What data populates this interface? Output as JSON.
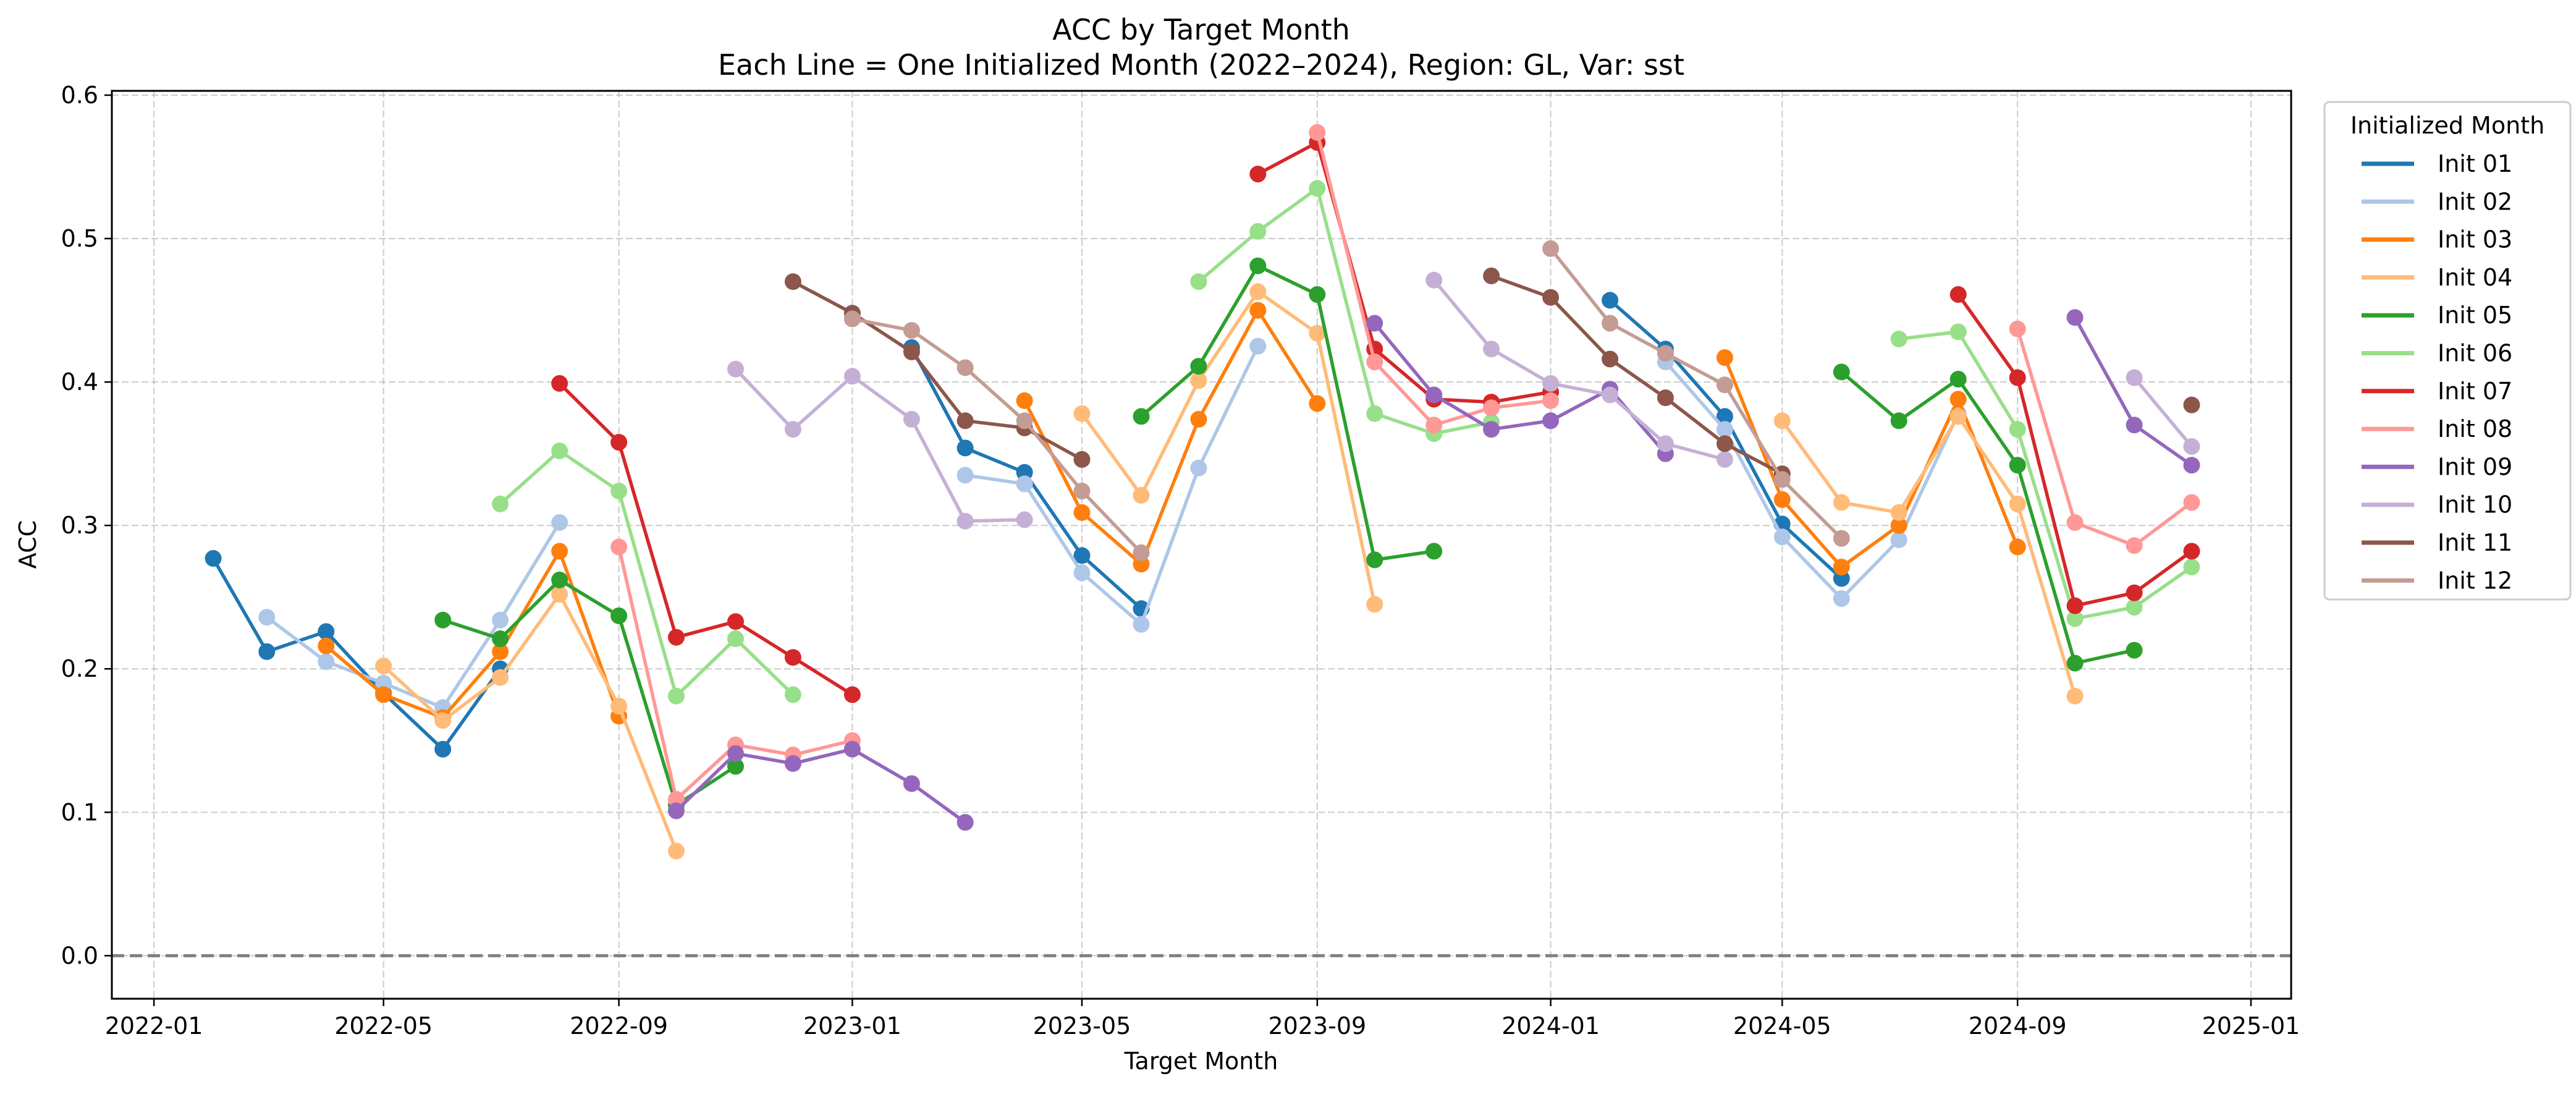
{
  "chart_data": {
    "type": "line",
    "title": "ACC by Target Month",
    "subtitle": "Each Line = One Initialized Month (2022–2024), Region: GL, Var: sst",
    "xlabel": "Target Month",
    "ylabel": "ACC",
    "xlim": [
      "2021-12-10",
      "2025-01-22"
    ],
    "ylim": [
      -0.03,
      0.603
    ],
    "grid": true,
    "zero_line": true,
    "legend_title": "Initialized Month",
    "legend_position": "outside-top-right",
    "x_ticks": [
      "2022-01",
      "2022-05",
      "2022-09",
      "2023-01",
      "2023-05",
      "2023-09",
      "2024-01",
      "2024-05",
      "2024-09",
      "2025-01"
    ],
    "y_ticks": [
      "0.0",
      "0.1",
      "0.2",
      "0.3",
      "0.4",
      "0.5",
      "0.6"
    ],
    "series": [
      {
        "name": "Init 01",
        "color": "#1f77b4",
        "segments": [
          [
            [
              "2022-02",
              0.277
            ],
            [
              "2022-03",
              0.212
            ],
            [
              "2022-04",
              0.226
            ],
            [
              "2022-05",
              0.183
            ],
            [
              "2022-06",
              0.144
            ],
            [
              "2022-07",
              0.2
            ]
          ],
          [
            [
              "2023-02",
              0.424
            ],
            [
              "2023-03",
              0.354
            ],
            [
              "2023-04",
              0.337
            ],
            [
              "2023-05",
              0.279
            ],
            [
              "2023-06",
              0.242
            ]
          ],
          [
            [
              "2024-02",
              0.457
            ],
            [
              "2024-03",
              0.423
            ],
            [
              "2024-04",
              0.376
            ],
            [
              "2024-05",
              0.301
            ],
            [
              "2024-06",
              0.263
            ]
          ]
        ]
      },
      {
        "name": "Init 02",
        "color": "#aec7e8",
        "segments": [
          [
            [
              "2022-03",
              0.236
            ],
            [
              "2022-04",
              0.205
            ],
            [
              "2022-05",
              0.19
            ],
            [
              "2022-06",
              0.173
            ],
            [
              "2022-07",
              0.234
            ],
            [
              "2022-08",
              0.302
            ]
          ],
          [
            [
              "2023-03",
              0.335
            ],
            [
              "2023-04",
              0.329
            ],
            [
              "2023-05",
              0.267
            ],
            [
              "2023-06",
              0.231
            ],
            [
              "2023-07",
              0.34
            ],
            [
              "2023-08",
              0.425
            ]
          ],
          [
            [
              "2024-03",
              0.414
            ],
            [
              "2024-04",
              0.367
            ],
            [
              "2024-05",
              0.292
            ],
            [
              "2024-06",
              0.249
            ],
            [
              "2024-07",
              0.29
            ],
            [
              "2024-08",
              0.378
            ]
          ]
        ]
      },
      {
        "name": "Init 03",
        "color": "#ff7f0e",
        "segments": [
          [
            [
              "2022-04",
              0.216
            ],
            [
              "2022-05",
              0.182
            ],
            [
              "2022-06",
              0.166
            ],
            [
              "2022-07",
              0.212
            ],
            [
              "2022-08",
              0.282
            ],
            [
              "2022-09",
              0.167
            ]
          ],
          [
            [
              "2023-04",
              0.387
            ],
            [
              "2023-05",
              0.309
            ],
            [
              "2023-06",
              0.273
            ],
            [
              "2023-07",
              0.374
            ],
            [
              "2023-08",
              0.45
            ],
            [
              "2023-09",
              0.385
            ]
          ],
          [
            [
              "2024-04",
              0.417
            ],
            [
              "2024-05",
              0.318
            ],
            [
              "2024-06",
              0.271
            ],
            [
              "2024-07",
              0.3
            ],
            [
              "2024-08",
              0.388
            ],
            [
              "2024-09",
              0.285
            ]
          ]
        ]
      },
      {
        "name": "Init 04",
        "color": "#ffbb78",
        "segments": [
          [
            [
              "2022-05",
              0.202
            ],
            [
              "2022-06",
              0.164
            ],
            [
              "2022-07",
              0.194
            ],
            [
              "2022-08",
              0.252
            ],
            [
              "2022-09",
              0.174
            ],
            [
              "2022-10",
              0.073
            ]
          ],
          [
            [
              "2023-05",
              0.378
            ],
            [
              "2023-06",
              0.321
            ],
            [
              "2023-07",
              0.401
            ],
            [
              "2023-08",
              0.463
            ],
            [
              "2023-09",
              0.434
            ],
            [
              "2023-10",
              0.245
            ]
          ],
          [
            [
              "2024-05",
              0.373
            ],
            [
              "2024-06",
              0.316
            ],
            [
              "2024-07",
              0.309
            ],
            [
              "2024-08",
              0.376
            ],
            [
              "2024-09",
              0.315
            ],
            [
              "2024-10",
              0.181
            ]
          ]
        ]
      },
      {
        "name": "Init 05",
        "color": "#2ca02c",
        "segments": [
          [
            [
              "2022-06",
              0.234
            ],
            [
              "2022-07",
              0.221
            ],
            [
              "2022-08",
              0.262
            ],
            [
              "2022-09",
              0.237
            ],
            [
              "2022-10",
              0.105
            ],
            [
              "2022-11",
              0.132
            ]
          ],
          [
            [
              "2023-06",
              0.376
            ],
            [
              "2023-07",
              0.411
            ],
            [
              "2023-08",
              0.481
            ],
            [
              "2023-09",
              0.461
            ],
            [
              "2023-10",
              0.276
            ],
            [
              "2023-11",
              0.282
            ]
          ],
          [
            [
              "2024-06",
              0.407
            ],
            [
              "2024-07",
              0.373
            ],
            [
              "2024-08",
              0.402
            ],
            [
              "2024-09",
              0.342
            ],
            [
              "2024-10",
              0.204
            ],
            [
              "2024-11",
              0.213
            ]
          ]
        ]
      },
      {
        "name": "Init 06",
        "color": "#98df8a",
        "segments": [
          [
            [
              "2022-07",
              0.315
            ],
            [
              "2022-08",
              0.352
            ],
            [
              "2022-09",
              0.324
            ],
            [
              "2022-10",
              0.181
            ],
            [
              "2022-11",
              0.221
            ],
            [
              "2022-12",
              0.182
            ]
          ],
          [
            [
              "2023-07",
              0.47
            ],
            [
              "2023-08",
              0.505
            ],
            [
              "2023-09",
              0.535
            ],
            [
              "2023-10",
              0.378
            ],
            [
              "2023-11",
              0.364
            ],
            [
              "2023-12",
              0.372
            ]
          ],
          [
            [
              "2024-07",
              0.43
            ],
            [
              "2024-08",
              0.435
            ],
            [
              "2024-09",
              0.367
            ],
            [
              "2024-10",
              0.235
            ],
            [
              "2024-11",
              0.243
            ],
            [
              "2024-12",
              0.271
            ]
          ]
        ]
      },
      {
        "name": "Init 07",
        "color": "#d62728",
        "segments": [
          [
            [
              "2022-08",
              0.399
            ],
            [
              "2022-09",
              0.358
            ],
            [
              "2022-10",
              0.222
            ],
            [
              "2022-11",
              0.233
            ],
            [
              "2022-12",
              0.208
            ],
            [
              "2023-01",
              0.182
            ]
          ],
          [
            [
              "2023-08",
              0.545
            ],
            [
              "2023-09",
              0.567
            ],
            [
              "2023-10",
              0.423
            ],
            [
              "2023-11",
              0.388
            ],
            [
              "2023-12",
              0.386
            ],
            [
              "2024-01",
              0.393
            ]
          ],
          [
            [
              "2024-08",
              0.461
            ],
            [
              "2024-09",
              0.403
            ],
            [
              "2024-10",
              0.244
            ],
            [
              "2024-11",
              0.253
            ],
            [
              "2024-12",
              0.282
            ]
          ]
        ]
      },
      {
        "name": "Init 08",
        "color": "#ff9896",
        "segments": [
          [
            [
              "2022-09",
              0.285
            ],
            [
              "2022-10",
              0.109
            ],
            [
              "2022-11",
              0.147
            ],
            [
              "2022-12",
              0.14
            ],
            [
              "2023-01",
              0.15
            ]
          ],
          [
            [
              "2023-09",
              0.574
            ],
            [
              "2023-10",
              0.414
            ],
            [
              "2023-11",
              0.37
            ],
            [
              "2023-12",
              0.382
            ],
            [
              "2024-01",
              0.387
            ]
          ],
          [
            [
              "2024-09",
              0.437
            ],
            [
              "2024-10",
              0.302
            ],
            [
              "2024-11",
              0.286
            ],
            [
              "2024-12",
              0.316
            ]
          ]
        ]
      },
      {
        "name": "Init 09",
        "color": "#9467bd",
        "segments": [
          [
            [
              "2022-10",
              0.101
            ],
            [
              "2022-11",
              0.141
            ],
            [
              "2022-12",
              0.134
            ],
            [
              "2023-01",
              0.144
            ],
            [
              "2023-02",
              0.12
            ],
            [
              "2023-03",
              0.093
            ]
          ],
          [
            [
              "2023-10",
              0.441
            ],
            [
              "2023-11",
              0.391
            ],
            [
              "2023-12",
              0.367
            ],
            [
              "2024-01",
              0.373
            ],
            [
              "2024-02",
              0.395
            ],
            [
              "2024-03",
              0.35
            ]
          ],
          [
            [
              "2024-10",
              0.445
            ],
            [
              "2024-11",
              0.37
            ],
            [
              "2024-12",
              0.342
            ]
          ]
        ]
      },
      {
        "name": "Init 10",
        "color": "#c5b0d5",
        "segments": [
          [
            [
              "2022-11",
              0.409
            ],
            [
              "2022-12",
              0.367
            ],
            [
              "2023-01",
              0.404
            ],
            [
              "2023-02",
              0.374
            ],
            [
              "2023-03",
              0.303
            ],
            [
              "2023-04",
              0.304
            ]
          ],
          [
            [
              "2023-11",
              0.471
            ],
            [
              "2023-12",
              0.423
            ],
            [
              "2024-01",
              0.399
            ],
            [
              "2024-02",
              0.391
            ],
            [
              "2024-03",
              0.357
            ],
            [
              "2024-04",
              0.346
            ]
          ],
          [
            [
              "2024-11",
              0.403
            ],
            [
              "2024-12",
              0.355
            ]
          ]
        ]
      },
      {
        "name": "Init 11",
        "color": "#8c564b",
        "segments": [
          [
            [
              "2022-12",
              0.47
            ],
            [
              "2023-01",
              0.448
            ],
            [
              "2023-02",
              0.421
            ],
            [
              "2023-03",
              0.373
            ],
            [
              "2023-04",
              0.368
            ],
            [
              "2023-05",
              0.346
            ]
          ],
          [
            [
              "2023-12",
              0.474
            ],
            [
              "2024-01",
              0.459
            ],
            [
              "2024-02",
              0.416
            ],
            [
              "2024-03",
              0.389
            ],
            [
              "2024-04",
              0.357
            ],
            [
              "2024-05",
              0.336
            ]
          ],
          [
            [
              "2024-12",
              0.384
            ]
          ]
        ]
      },
      {
        "name": "Init 12",
        "color": "#c49c94",
        "segments": [
          [
            [
              "2023-01",
              0.444
            ],
            [
              "2023-02",
              0.436
            ],
            [
              "2023-03",
              0.41
            ],
            [
              "2023-04",
              0.373
            ],
            [
              "2023-05",
              0.324
            ],
            [
              "2023-06",
              0.281
            ]
          ],
          [
            [
              "2024-01",
              0.493
            ],
            [
              "2024-02",
              0.441
            ],
            [
              "2024-03",
              0.42
            ],
            [
              "2024-04",
              0.398
            ],
            [
              "2024-05",
              0.332
            ],
            [
              "2024-06",
              0.291
            ]
          ]
        ]
      }
    ]
  }
}
